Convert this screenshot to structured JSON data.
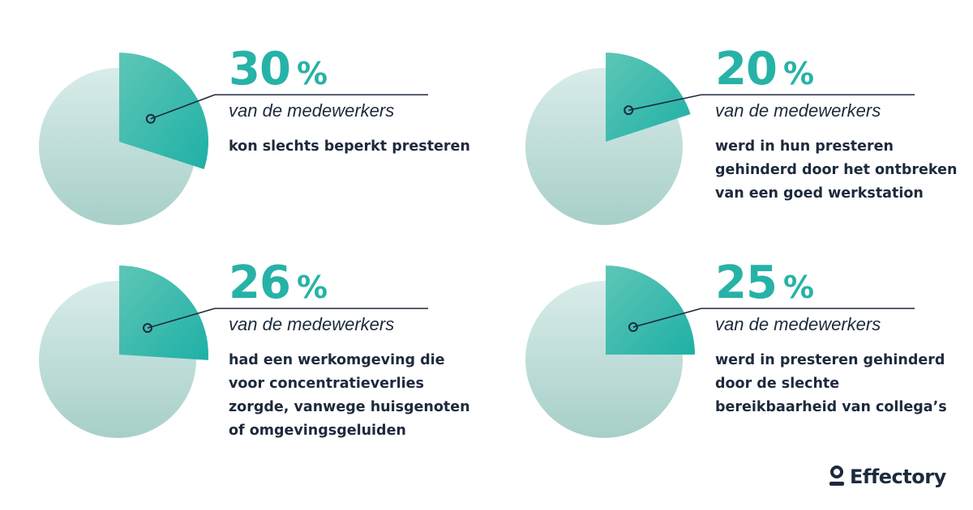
{
  "chart_data": [
    {
      "type": "pie",
      "value": 30,
      "percent_symbol": "%",
      "subtitle": "van de medewerkers",
      "description": "kon slechts beperkt presteren"
    },
    {
      "type": "pie",
      "value": 20,
      "percent_symbol": "%",
      "subtitle": "van de medewerkers",
      "description": "werd in hun presteren gehinderd door het ontbreken van een goed werkstation"
    },
    {
      "type": "pie",
      "value": 26,
      "percent_symbol": "%",
      "subtitle": "van de medewerkers",
      "description": "had een werkomgeving die voor concentratieverlies zorgde, vanwege huisgenoten of omgevingsgeluiden"
    },
    {
      "type": "pie",
      "value": 25,
      "percent_symbol": "%",
      "subtitle": "van de medewerkers",
      "description": "werd in presteren gehinderd door de slechte bereikbaarheid van collega’s"
    }
  ],
  "colors": {
    "accent": "#27b2a7",
    "accent_light": "#5ec6b6",
    "pie_light": "#d9ecea",
    "pie_dark": "#a7cfc8",
    "text_dark": "#1d2a3d"
  },
  "brand": {
    "name": "Effectory",
    "icon": "person-icon"
  }
}
